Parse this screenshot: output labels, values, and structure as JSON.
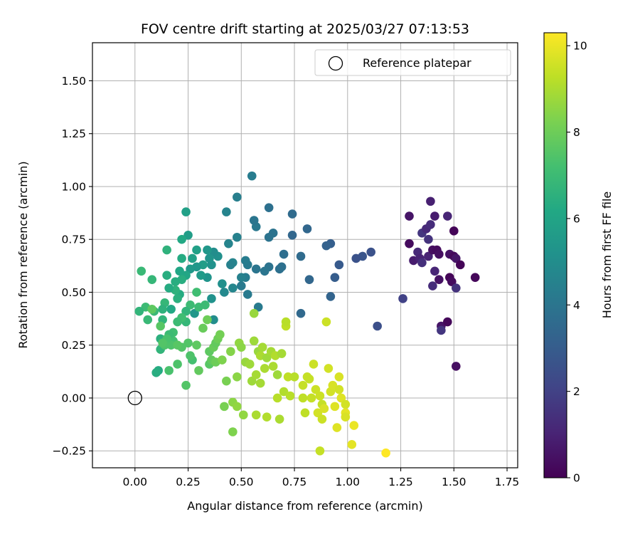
{
  "chart_data": {
    "type": "scatter",
    "title": "FOV centre drift starting at 2025/03/27 07:13:53",
    "xlabel": "Angular distance from reference (arcmin)",
    "ylabel": "Rotation from reference (arcmin)",
    "xlim": [
      -0.2,
      1.8
    ],
    "ylim": [
      -0.33,
      1.68
    ],
    "xticks": [
      0.0,
      0.25,
      0.5,
      0.75,
      1.0,
      1.25,
      1.5,
      1.75
    ],
    "xtick_labels": [
      "0.00",
      "0.25",
      "0.50",
      "0.75",
      "1.00",
      "1.25",
      "1.50",
      "1.75"
    ],
    "yticks": [
      -0.25,
      0.0,
      0.25,
      0.5,
      0.75,
      1.0,
      1.25,
      1.5
    ],
    "ytick_labels": [
      "−0.25",
      "0.00",
      "0.25",
      "0.50",
      "0.75",
      "1.00",
      "1.25",
      "1.50"
    ],
    "grid": true,
    "legend": {
      "placement": "top-right",
      "entries": [
        {
          "label": "Reference platepar",
          "marker": "open-circle"
        }
      ]
    },
    "reference_point": {
      "x": 0.0,
      "y": 0.0
    },
    "colorbar": {
      "label": "Hours from first FF file",
      "colormap": "viridis",
      "range": [
        0,
        10.3
      ],
      "ticks": [
        0,
        2,
        4,
        6,
        8,
        10
      ],
      "tick_labels": [
        "0",
        "2",
        "4",
        "6",
        "8",
        "10"
      ]
    },
    "series": [
      {
        "points": [
          [
            1.29,
            0.73,
            0.3
          ],
          [
            1.29,
            0.86,
            0.6
          ],
          [
            1.31,
            0.65,
            0.8
          ],
          [
            1.33,
            0.69,
            1.2
          ],
          [
            1.34,
            0.66,
            1.0
          ],
          [
            1.35,
            0.64,
            1.4
          ],
          [
            1.35,
            0.78,
            1.6
          ],
          [
            1.37,
            0.8,
            1.2
          ],
          [
            1.38,
            0.75,
            1.5
          ],
          [
            1.38,
            0.67,
            1.0
          ],
          [
            1.39,
            0.93,
            0.9
          ],
          [
            1.39,
            0.82,
            1.3
          ],
          [
            1.4,
            0.7,
            0.4
          ],
          [
            1.4,
            0.53,
            1.3
          ],
          [
            1.41,
            0.6,
            1.1
          ],
          [
            1.41,
            0.86,
            0.8
          ],
          [
            1.42,
            0.7,
            0.3
          ],
          [
            1.43,
            0.68,
            0.4
          ],
          [
            1.43,
            0.56,
            0.5
          ],
          [
            1.44,
            0.34,
            0.6
          ],
          [
            1.44,
            0.32,
            1.6
          ],
          [
            1.47,
            0.86,
            1.1
          ],
          [
            1.47,
            0.36,
            0.2
          ],
          [
            1.48,
            0.57,
            0.1
          ],
          [
            1.48,
            0.68,
            0.5
          ],
          [
            1.49,
            0.55,
            0.3
          ],
          [
            1.5,
            0.67,
            0.2
          ],
          [
            1.5,
            0.79,
            0.1
          ],
          [
            1.51,
            0.66,
            0.6
          ],
          [
            1.51,
            0.52,
            1.5
          ],
          [
            1.51,
            0.15,
            0.4
          ],
          [
            1.53,
            0.63,
            0.1
          ],
          [
            1.6,
            0.57,
            0.2
          ],
          [
            1.26,
            0.47,
            2.0
          ],
          [
            1.14,
            0.34,
            2.5
          ],
          [
            1.11,
            0.69,
            2.6
          ],
          [
            1.07,
            0.67,
            2.7
          ],
          [
            1.04,
            0.66,
            2.6
          ],
          [
            0.96,
            0.63,
            2.9
          ],
          [
            0.94,
            0.57,
            3.0
          ],
          [
            0.92,
            0.48,
            3.3
          ],
          [
            0.92,
            0.73,
            3.1
          ],
          [
            0.9,
            0.72,
            3.2
          ],
          [
            0.82,
            0.56,
            3.4
          ],
          [
            0.81,
            0.8,
            3.4
          ],
          [
            0.78,
            0.4,
            3.5
          ],
          [
            0.78,
            0.67,
            3.6
          ],
          [
            0.74,
            0.87,
            3.6
          ],
          [
            0.74,
            0.77,
            3.4
          ],
          [
            0.7,
            0.68,
            3.7
          ],
          [
            0.69,
            0.62,
            3.8
          ],
          [
            0.68,
            0.61,
            3.8
          ],
          [
            0.65,
            0.78,
            3.9
          ],
          [
            0.63,
            0.9,
            3.8
          ],
          [
            0.63,
            0.76,
            3.9
          ],
          [
            0.63,
            0.62,
            3.9
          ],
          [
            0.61,
            0.6,
            4.0
          ],
          [
            0.58,
            0.43,
            4.2
          ],
          [
            0.57,
            0.61,
            4.0
          ],
          [
            0.57,
            0.81,
            4.1
          ],
          [
            0.56,
            0.84,
            4.0
          ],
          [
            0.55,
            1.05,
            4.3
          ],
          [
            0.53,
            0.49,
            4.2
          ],
          [
            0.53,
            0.63,
            4.2
          ],
          [
            0.52,
            0.57,
            4.3
          ],
          [
            0.52,
            0.65,
            4.3
          ],
          [
            0.5,
            0.57,
            4.5
          ],
          [
            0.5,
            0.53,
            4.2
          ],
          [
            0.48,
            0.95,
            4.4
          ],
          [
            0.48,
            0.76,
            4.5
          ],
          [
            0.46,
            0.64,
            4.6
          ],
          [
            0.46,
            0.52,
            4.7
          ],
          [
            0.45,
            0.63,
            4.5
          ],
          [
            0.44,
            0.73,
            4.6
          ],
          [
            0.43,
            0.88,
            4.6
          ],
          [
            0.42,
            0.5,
            4.8
          ],
          [
            0.41,
            0.54,
            5.1
          ],
          [
            0.39,
            0.67,
            5.1
          ],
          [
            0.37,
            0.69,
            5.0
          ],
          [
            0.37,
            0.37,
            5.0
          ],
          [
            0.36,
            0.47,
            5.2
          ],
          [
            0.36,
            0.63,
            5.2
          ],
          [
            0.35,
            0.66,
            5.3
          ],
          [
            0.34,
            0.7,
            5.4
          ],
          [
            0.34,
            0.57,
            5.3
          ],
          [
            0.32,
            0.63,
            5.7
          ],
          [
            0.31,
            0.58,
            5.6
          ],
          [
            0.29,
            0.7,
            5.8
          ],
          [
            0.29,
            0.62,
            5.4
          ],
          [
            0.28,
            0.4,
            5.4
          ],
          [
            0.27,
            0.66,
            5.8
          ],
          [
            0.26,
            0.61,
            5.5
          ],
          [
            0.25,
            0.77,
            5.7
          ],
          [
            0.24,
            0.88,
            5.8
          ],
          [
            0.24,
            0.58,
            6.1
          ],
          [
            0.22,
            0.75,
            6.2
          ],
          [
            0.22,
            0.66,
            6.3
          ],
          [
            0.22,
            0.56,
            6.4
          ],
          [
            0.21,
            0.6,
            6.1
          ],
          [
            0.21,
            0.49,
            6.3
          ],
          [
            0.2,
            0.47,
            6.5
          ],
          [
            0.19,
            0.55,
            6.4
          ],
          [
            0.19,
            0.51,
            6.6
          ],
          [
            0.17,
            0.42,
            6.2
          ],
          [
            0.16,
            0.52,
            6.3
          ],
          [
            0.15,
            0.58,
            6.4
          ],
          [
            0.15,
            0.7,
            6.6
          ],
          [
            0.14,
            0.45,
            6.8
          ],
          [
            0.13,
            0.42,
            6.6
          ],
          [
            0.13,
            0.37,
            6.7
          ],
          [
            0.12,
            0.28,
            6.5
          ],
          [
            0.12,
            0.23,
            6.7
          ],
          [
            0.11,
            0.13,
            6.3
          ],
          [
            0.1,
            0.12,
            6.4
          ],
          [
            0.09,
            0.41,
            6.9
          ],
          [
            0.08,
            0.56,
            6.8
          ],
          [
            0.06,
            0.37,
            6.9
          ],
          [
            0.05,
            0.43,
            7.0
          ],
          [
            0.03,
            0.6,
            6.9
          ],
          [
            0.02,
            0.41,
            6.7
          ],
          [
            0.3,
            0.43,
            7.0
          ],
          [
            0.33,
            0.44,
            7.0
          ],
          [
            0.29,
            0.5,
            7.1
          ],
          [
            0.26,
            0.44,
            7.0
          ],
          [
            0.24,
            0.36,
            6.8
          ],
          [
            0.24,
            0.41,
            6.7
          ],
          [
            0.22,
            0.38,
            7.1
          ],
          [
            0.2,
            0.36,
            7.0
          ],
          [
            0.18,
            0.31,
            7.1
          ],
          [
            0.18,
            0.27,
            7.2
          ],
          [
            0.17,
            0.25,
            7.4
          ],
          [
            0.16,
            0.3,
            7.0
          ],
          [
            0.16,
            0.13,
            7.3
          ],
          [
            0.15,
            0.28,
            7.3
          ],
          [
            0.14,
            0.25,
            7.4
          ],
          [
            0.13,
            0.26,
            7.5
          ],
          [
            0.12,
            0.34,
            7.6
          ],
          [
            0.08,
            0.42,
            7.7
          ],
          [
            0.27,
            0.18,
            7.2
          ],
          [
            0.26,
            0.2,
            7.4
          ],
          [
            0.25,
            0.26,
            7.5
          ],
          [
            0.24,
            0.06,
            7.5
          ],
          [
            0.22,
            0.24,
            7.5
          ],
          [
            0.2,
            0.25,
            7.6
          ],
          [
            0.2,
            0.16,
            7.4
          ],
          [
            0.29,
            0.25,
            7.7
          ],
          [
            0.3,
            0.13,
            7.8
          ],
          [
            0.32,
            0.33,
            7.9
          ],
          [
            0.34,
            0.37,
            8.0
          ],
          [
            0.35,
            0.22,
            7.7
          ],
          [
            0.35,
            0.16,
            7.6
          ],
          [
            0.36,
            0.18,
            7.8
          ],
          [
            0.37,
            0.24,
            7.9
          ],
          [
            0.38,
            0.17,
            8.0
          ],
          [
            0.38,
            0.26,
            7.8
          ],
          [
            0.39,
            0.28,
            8.0
          ],
          [
            0.4,
            0.3,
            8.1
          ],
          [
            0.41,
            0.18,
            8.3
          ],
          [
            0.42,
            -0.04,
            8.2
          ],
          [
            0.43,
            0.08,
            8.2
          ],
          [
            0.45,
            0.22,
            8.4
          ],
          [
            0.46,
            -0.02,
            8.5
          ],
          [
            0.46,
            -0.16,
            8.3
          ],
          [
            0.48,
            -0.04,
            8.6
          ],
          [
            0.48,
            0.1,
            8.5
          ],
          [
            0.49,
            0.26,
            8.6
          ],
          [
            0.5,
            0.24,
            8.5
          ],
          [
            0.51,
            -0.08,
            8.6
          ],
          [
            0.52,
            0.17,
            8.7
          ],
          [
            0.54,
            0.16,
            8.8
          ],
          [
            0.55,
            0.08,
            8.8
          ],
          [
            0.56,
            0.27,
            8.8
          ],
          [
            0.56,
            0.4,
            8.7
          ],
          [
            0.57,
            0.11,
            8.9
          ],
          [
            0.57,
            -0.08,
            9.0
          ],
          [
            0.58,
            0.22,
            8.7
          ],
          [
            0.59,
            0.07,
            8.9
          ],
          [
            0.59,
            0.2,
            9.0
          ],
          [
            0.6,
            0.24,
            8.9
          ],
          [
            0.61,
            0.14,
            9.0
          ],
          [
            0.62,
            -0.09,
            9.1
          ],
          [
            0.62,
            0.19,
            8.8
          ],
          [
            0.64,
            0.22,
            8.9
          ],
          [
            0.65,
            0.15,
            9.0
          ],
          [
            0.66,
            0.2,
            9.1
          ],
          [
            0.67,
            0.0,
            9.2
          ],
          [
            0.67,
            0.11,
            8.8
          ],
          [
            0.68,
            -0.1,
            9.0
          ],
          [
            0.69,
            0.21,
            8.9
          ],
          [
            0.7,
            0.03,
            9.1
          ],
          [
            0.71,
            0.34,
            9.3
          ],
          [
            0.71,
            0.36,
            9.2
          ],
          [
            0.72,
            0.1,
            9.3
          ],
          [
            0.73,
            0.01,
            9.2
          ],
          [
            0.75,
            0.1,
            9.2
          ],
          [
            0.79,
            0.06,
            9.4
          ],
          [
            0.79,
            0.0,
            9.3
          ],
          [
            0.8,
            -0.07,
            9.3
          ],
          [
            0.81,
            0.1,
            9.4
          ],
          [
            0.82,
            0.09,
            9.4
          ],
          [
            0.83,
            0.0,
            9.4
          ],
          [
            0.84,
            0.16,
            9.5
          ],
          [
            0.85,
            0.04,
            9.5
          ],
          [
            0.86,
            -0.07,
            9.6
          ],
          [
            0.87,
            0.01,
            9.5
          ],
          [
            0.87,
            -0.25,
            9.4
          ],
          [
            0.88,
            -0.1,
            9.5
          ],
          [
            0.88,
            -0.03,
            9.4
          ],
          [
            0.89,
            -0.05,
            9.7
          ],
          [
            0.9,
            0.36,
            9.5
          ],
          [
            0.91,
            0.14,
            9.6
          ],
          [
            0.92,
            0.03,
            9.6
          ],
          [
            0.93,
            0.06,
            9.7
          ],
          [
            0.94,
            -0.04,
            9.8
          ],
          [
            0.95,
            -0.14,
            9.8
          ],
          [
            0.96,
            0.1,
            9.7
          ],
          [
            0.96,
            0.04,
            9.6
          ],
          [
            0.97,
            0.0,
            9.8
          ],
          [
            0.99,
            -0.03,
            9.6
          ],
          [
            0.99,
            -0.07,
            9.9
          ],
          [
            0.99,
            -0.09,
            9.7
          ],
          [
            1.02,
            -0.22,
            9.9
          ],
          [
            1.03,
            -0.13,
            10.0
          ],
          [
            1.18,
            -0.26,
            10.3
          ]
        ]
      }
    ]
  }
}
